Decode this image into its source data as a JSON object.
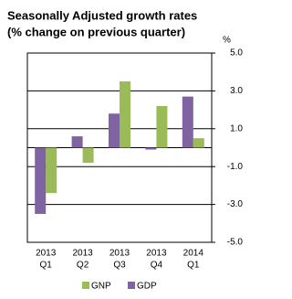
{
  "chart_data": {
    "type": "bar",
    "title": "Seasonally Adjusted growth rates",
    "subtitle": "(% change on previous quarter)",
    "y_axis_label": "%",
    "categories": [
      [
        "2013",
        "Q1"
      ],
      [
        "2013",
        "Q2"
      ],
      [
        "2013",
        "Q3"
      ],
      [
        "2013",
        "Q4"
      ],
      [
        "2014",
        "Q1"
      ]
    ],
    "series": [
      {
        "name": "GNP",
        "color": "#9bbb59",
        "values": [
          -2.4,
          -0.8,
          3.5,
          2.2,
          0.5
        ]
      },
      {
        "name": "GDP",
        "color": "#8064a2",
        "values": [
          -3.5,
          0.6,
          1.8,
          -0.1,
          2.7
        ]
      }
    ],
    "ylim": [
      -5,
      5
    ],
    "yticks": [
      {
        "value": -5,
        "label": "-5.0"
      },
      {
        "value": -3,
        "label": "-3.0"
      },
      {
        "value": -1,
        "label": "-1.0"
      },
      {
        "value": 1,
        "label": "1.0"
      },
      {
        "value": 3,
        "label": "3.0"
      },
      {
        "value": 5,
        "label": "5.0"
      }
    ],
    "grid": true
  }
}
